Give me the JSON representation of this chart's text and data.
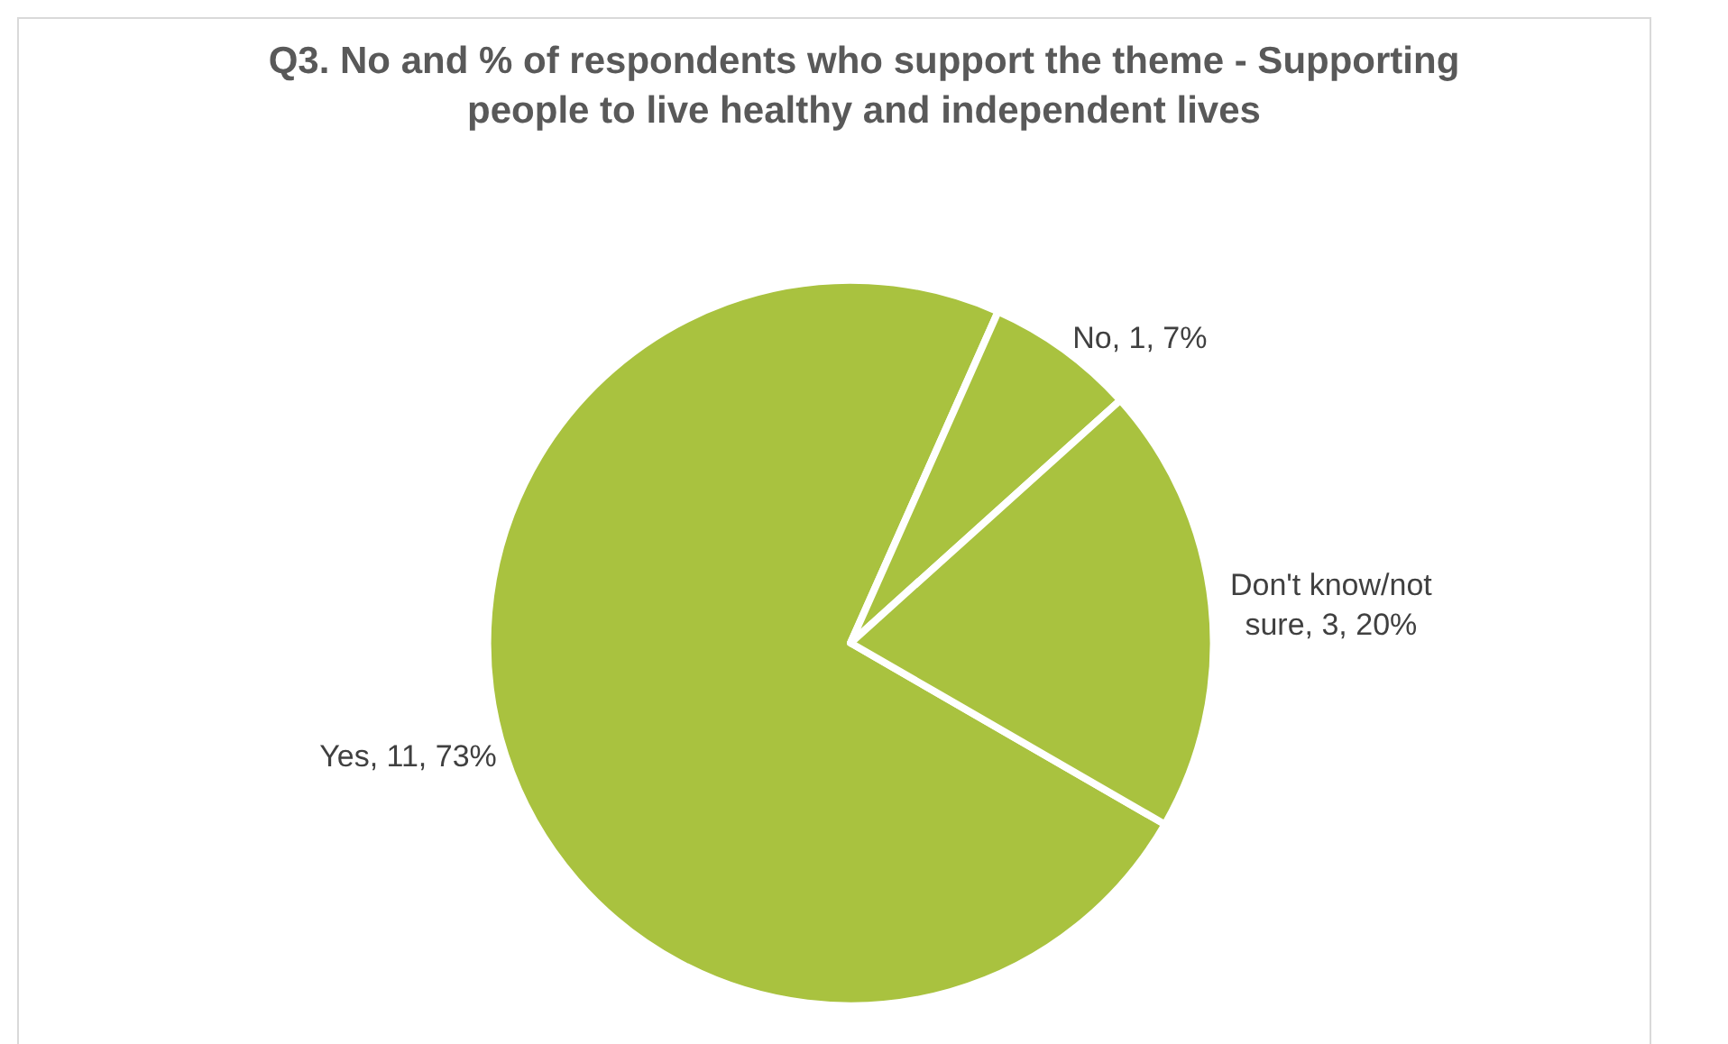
{
  "chart_data": {
    "type": "pie",
    "title": "Q3. No and % of respondents who support the theme - Supporting\npeople to live healthy and independent lives",
    "categories": [
      "Yes",
      "No",
      "Don't know/not sure"
    ],
    "values": [
      11,
      1,
      3
    ],
    "colors": [
      "#a9c23f",
      "#a9c23f",
      "#a9c23f"
    ],
    "value_labels": [
      "11, 73%",
      "1, 7%",
      "3, 20%"
    ],
    "legend": false
  }
}
